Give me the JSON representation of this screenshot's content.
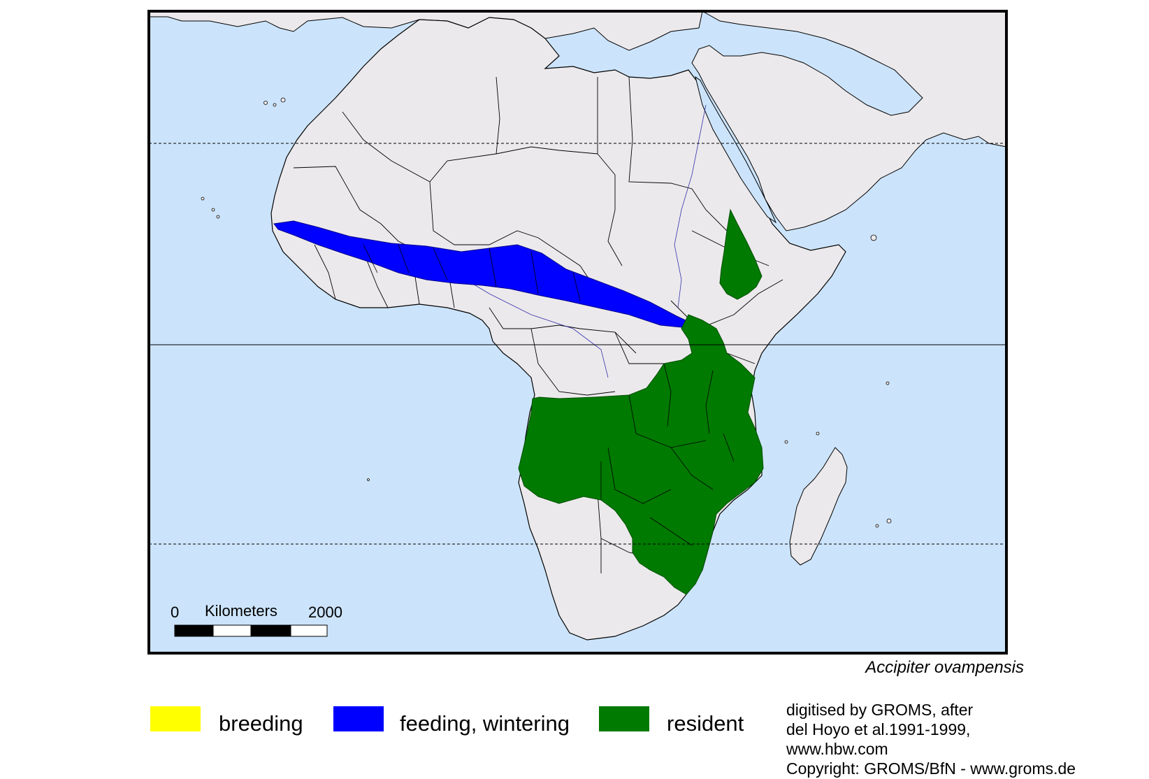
{
  "map": {
    "title_species": "Accipiter ovampensis",
    "colors": {
      "ocean": "#cce4fb",
      "land": "#ece9ec",
      "border": "#000000",
      "breeding": "#ffff00",
      "feeding": "#0000ff",
      "resident": "#007a00"
    },
    "scale": {
      "start": "0",
      "unit": "Kilometers",
      "end": "2000"
    }
  },
  "legend": {
    "items": [
      {
        "label": "breeding",
        "color": "#ffff00"
      },
      {
        "label": "feeding, wintering",
        "color": "#0000ff"
      },
      {
        "label": "resident",
        "color": "#007a00"
      }
    ]
  },
  "credits": {
    "line1": "digitised by GROMS, after",
    "line2": "del Hoyo et al.1991-1999,",
    "line3": "www.hbw.com",
    "line4": "Copyright: GROMS/BfN - www.groms.de"
  }
}
